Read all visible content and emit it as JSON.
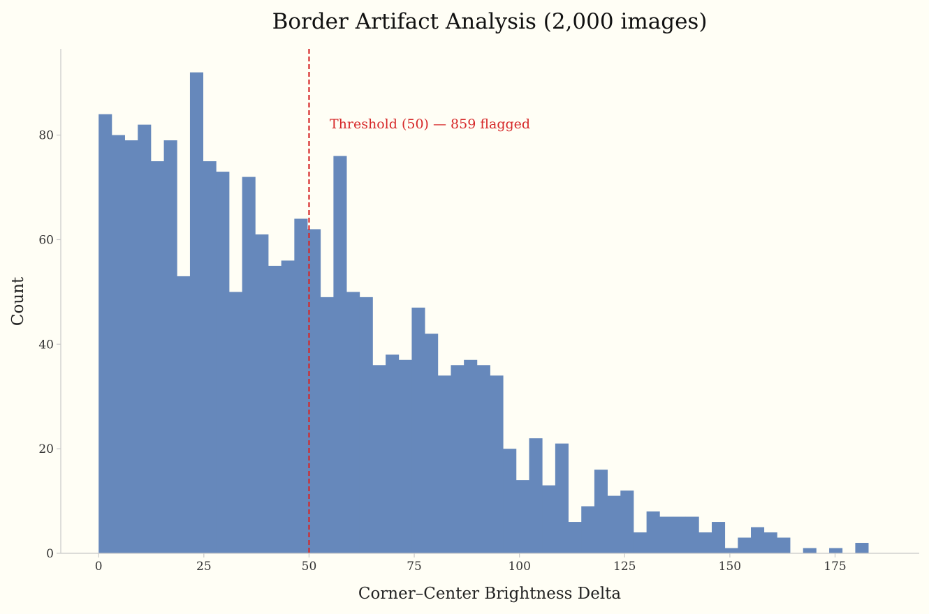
{
  "chart_data": {
    "type": "bar",
    "title": "Border Artifact Analysis  (2,000 images)",
    "xlabel": "Corner–Center Brightness Delta",
    "ylabel": "Count",
    "bin_start": 0,
    "bin_width": 3.1,
    "values": [
      84,
      80,
      79,
      82,
      75,
      79,
      53,
      92,
      75,
      73,
      50,
      72,
      61,
      55,
      56,
      64,
      62,
      49,
      76,
      50,
      49,
      36,
      38,
      37,
      47,
      42,
      34,
      36,
      37,
      36,
      34,
      20,
      14,
      22,
      13,
      21,
      6,
      9,
      16,
      11,
      12,
      4,
      8,
      7,
      7,
      7,
      4,
      6,
      1,
      3,
      5,
      4,
      3,
      0,
      1,
      0,
      1,
      0,
      2
    ],
    "xlim": [
      -9,
      195
    ],
    "ylim": [
      0,
      96.5
    ],
    "xticks": [
      0,
      25,
      50,
      75,
      100,
      125,
      150,
      175
    ],
    "yticks": [
      0,
      20,
      40,
      60,
      80
    ],
    "threshold": {
      "value": 50,
      "label": "Threshold (50) — 859 flagged",
      "color": "#d62728"
    },
    "bar_color": "#6688bb",
    "grid": false,
    "legend": "none"
  }
}
